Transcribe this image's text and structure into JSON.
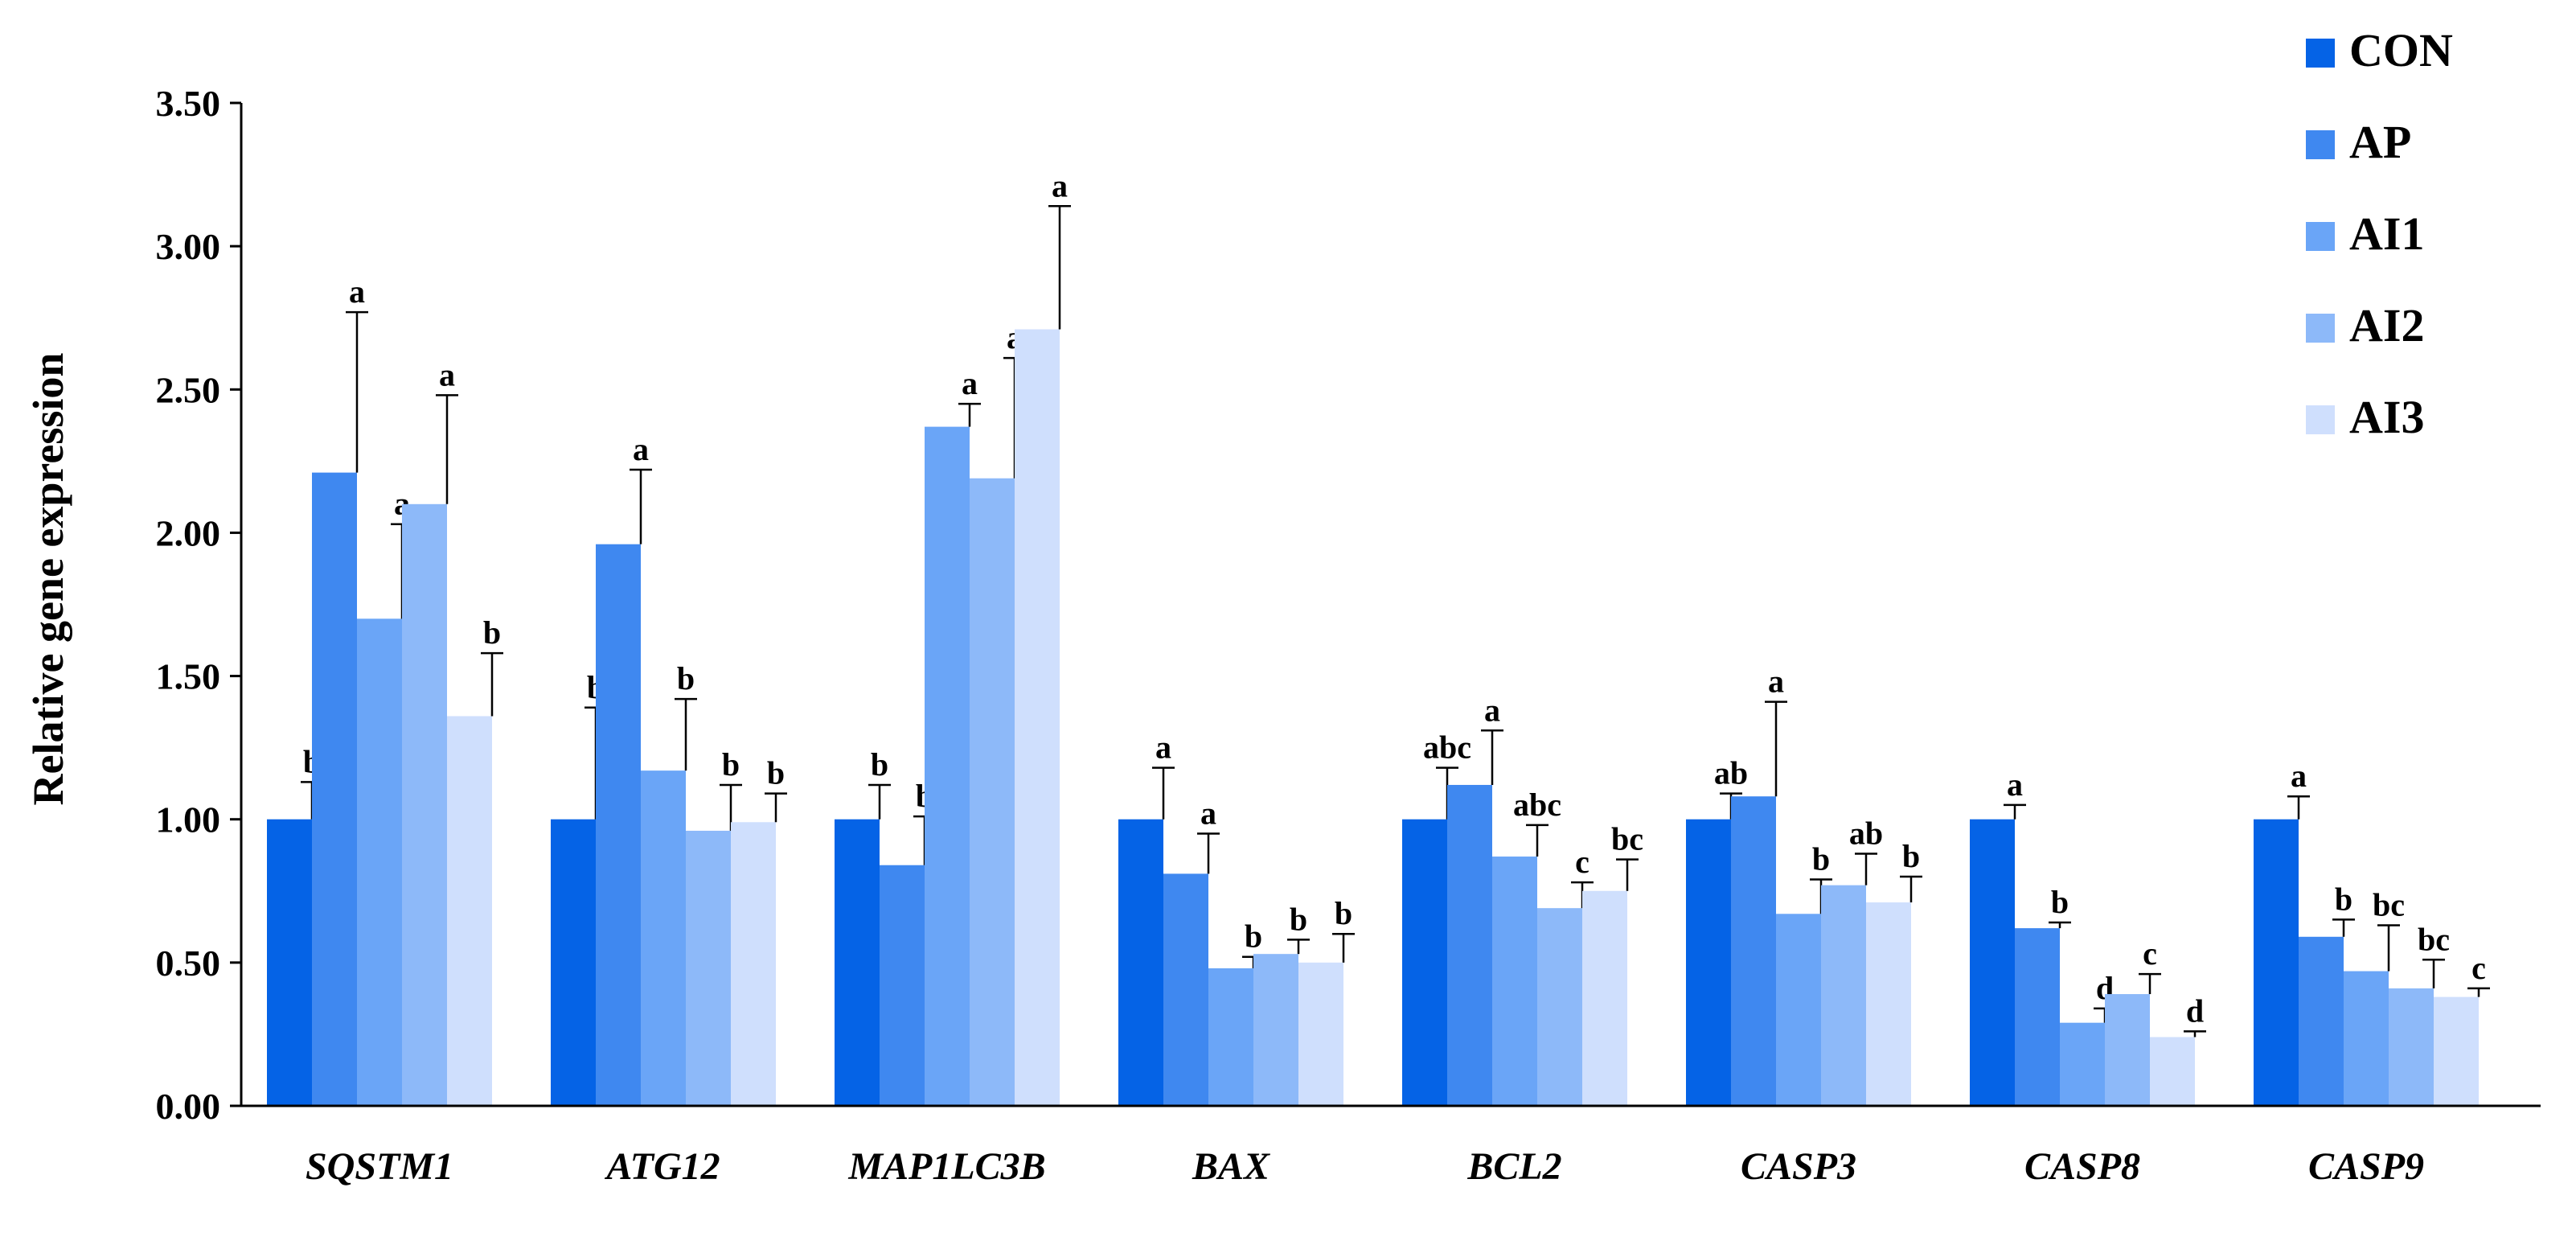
{
  "chart_data": {
    "type": "bar",
    "title": "",
    "xlabel": "",
    "ylabel": "Relative gene expression",
    "ylim": [
      0,
      3.5
    ],
    "yticks": [
      "0.00",
      "0.50",
      "1.00",
      "1.50",
      "2.00",
      "2.50",
      "3.00",
      "3.50"
    ],
    "grid": false,
    "legend_position": "top-right",
    "categories": [
      "SQSTM1",
      "ATG12",
      "MAP1LC3B",
      "BAX",
      "BCL2",
      "CASP3",
      "CASP8",
      "CASP9"
    ],
    "series": [
      {
        "name": "CON",
        "color": "#0563E6",
        "values": [
          1.0,
          1.0,
          1.0,
          1.0,
          1.0,
          1.0,
          1.0,
          1.0
        ],
        "errors": [
          0.13,
          0.39,
          0.12,
          0.18,
          0.18,
          0.09,
          0.05,
          0.08
        ],
        "labels": [
          "b",
          "b",
          "b",
          "a",
          "abc",
          "ab",
          "a",
          "a"
        ]
      },
      {
        "name": "AP",
        "color": "#3F88F0",
        "values": [
          2.21,
          1.96,
          0.84,
          0.81,
          1.12,
          1.08,
          0.62,
          0.59
        ],
        "errors": [
          0.56,
          0.26,
          0.17,
          0.14,
          0.19,
          0.33,
          0.02,
          0.06
        ],
        "labels": [
          "a",
          "a",
          "b",
          "a",
          "a",
          "a",
          "b",
          "b"
        ]
      },
      {
        "name": "AI1",
        "color": "#6AA5F7",
        "values": [
          1.7,
          1.17,
          2.37,
          0.48,
          0.87,
          0.67,
          0.29,
          0.47
        ],
        "errors": [
          0.33,
          0.25,
          0.08,
          0.04,
          0.11,
          0.12,
          0.05,
          0.16
        ],
        "labels": [
          "a",
          "b",
          "a",
          "b",
          "abc",
          "b",
          "d",
          "bc"
        ]
      },
      {
        "name": "AI2",
        "color": "#8DB9F9",
        "values": [
          2.1,
          0.96,
          2.19,
          0.53,
          0.69,
          0.77,
          0.39,
          0.41
        ],
        "errors": [
          0.38,
          0.16,
          0.42,
          0.05,
          0.09,
          0.11,
          0.07,
          0.1
        ],
        "labels": [
          "a",
          "b",
          "a",
          "b",
          "c",
          "ab",
          "c",
          "bc"
        ]
      },
      {
        "name": "AI3",
        "color": "#CFDFFD",
        "values": [
          1.36,
          0.99,
          2.71,
          0.5,
          0.75,
          0.71,
          0.24,
          0.38
        ],
        "errors": [
          0.22,
          0.1,
          0.43,
          0.1,
          0.11,
          0.09,
          0.02,
          0.03
        ],
        "labels": [
          "b",
          "b",
          "a",
          "b",
          "bc",
          "b",
          "d",
          "c"
        ]
      }
    ]
  }
}
